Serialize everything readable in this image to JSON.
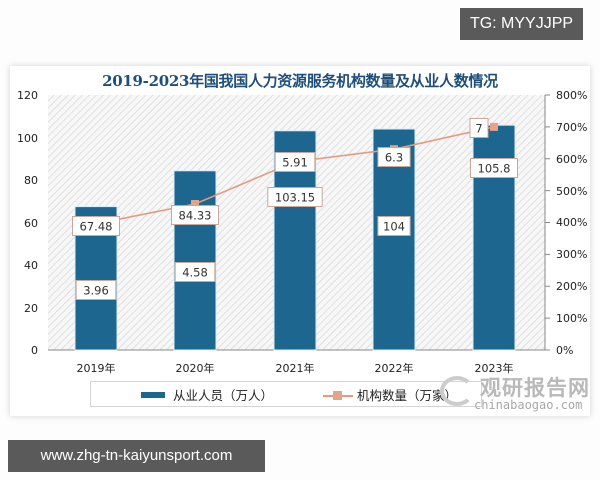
{
  "overlay": {
    "tg_badge": "TG: MYYJJPP",
    "url_badge": "www.zhg-tn-kaiyunsport.com"
  },
  "chart": {
    "title": "2019-2023年国我国人力资源服务机构数量及从业人数情况",
    "left_axis_ticks": [
      "0",
      "20",
      "40",
      "60",
      "80",
      "100",
      "120"
    ],
    "right_axis_ticks": [
      "0%",
      "100%",
      "200%",
      "300%",
      "400%",
      "500%",
      "600%",
      "700%",
      "800%"
    ],
    "categories": [
      "2019年",
      "2020年",
      "2021年",
      "2022年",
      "2023年"
    ],
    "legend": {
      "bar_label": "从业人员（万人）",
      "line_label": "机构数量（万家）"
    },
    "colors": {
      "bar": "#1c6690",
      "line": "#e39a80",
      "title": "#1f4e79"
    }
  },
  "watermark": {
    "brand_cn": "观研报告网",
    "brand_en": "chinabaogao.com"
  },
  "chart_data": {
    "type": "bar",
    "title": "2019-2023年国我国人力资源服务机构数量及从业人数情况",
    "categories": [
      "2019年",
      "2020年",
      "2021年",
      "2022年",
      "2023年"
    ],
    "series": [
      {
        "name": "从业人员（万人）",
        "type": "bar",
        "axis": "left",
        "values": [
          67.48,
          84.33,
          103.15,
          104,
          105.8
        ]
      },
      {
        "name": "机构数量（万家）",
        "type": "line",
        "axis": "right",
        "values": [
          3.96,
          4.58,
          5.91,
          6.3,
          7
        ]
      }
    ],
    "xlabel": "",
    "ylabel_left": "",
    "ylabel_right": "",
    "ylim_left": [
      0,
      120
    ],
    "ylim_right": [
      "0%",
      "800%"
    ],
    "left_ticks": [
      0,
      20,
      40,
      60,
      80,
      100,
      120
    ],
    "right_ticks": [
      "0%",
      "100%",
      "200%",
      "300%",
      "400%",
      "500%",
      "600%",
      "700%",
      "800%"
    ],
    "grid": false,
    "legend_position": "bottom"
  }
}
